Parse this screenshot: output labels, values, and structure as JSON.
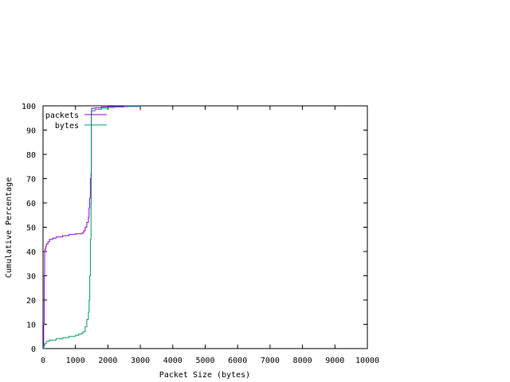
{
  "chart_data": {
    "type": "line",
    "title": "",
    "xlabel": "Packet Size (bytes)",
    "ylabel": "Cumulative Percentage",
    "xlim": [
      0,
      10000
    ],
    "ylim": [
      0,
      100
    ],
    "xticks": [
      0,
      1000,
      2000,
      3000,
      4000,
      5000,
      6000,
      7000,
      8000,
      9000,
      10000
    ],
    "yticks": [
      0,
      10,
      20,
      30,
      40,
      50,
      60,
      70,
      80,
      90,
      100
    ],
    "grid": false,
    "legend_position": "top-left",
    "series": [
      {
        "name": "packets",
        "color": "#9400d3",
        "x": [
          0,
          20,
          40,
          50,
          60,
          80,
          100,
          150,
          200,
          300,
          400,
          600,
          800,
          1000,
          1200,
          1250,
          1300,
          1350,
          1400,
          1420,
          1440,
          1460,
          1480,
          1490,
          1500,
          1600,
          1800,
          2000,
          2200,
          2500,
          3000
        ],
        "y": [
          0,
          10,
          30,
          40,
          41,
          42,
          43,
          44,
          45,
          45.5,
          46,
          46.5,
          47,
          47.3,
          47.6,
          48.5,
          50,
          52,
          54,
          58,
          62,
          70,
          72,
          98,
          99,
          99.2,
          99.5,
          99.7,
          99.8,
          99.9,
          100
        ]
      },
      {
        "name": "bytes",
        "color": "#009e73",
        "x": [
          0,
          20,
          50,
          100,
          200,
          400,
          600,
          800,
          1000,
          1100,
          1200,
          1250,
          1300,
          1350,
          1400,
          1420,
          1440,
          1460,
          1480,
          1490,
          1500,
          1600,
          1800,
          2000,
          2200,
          2500,
          3000
        ],
        "y": [
          0,
          1,
          2,
          3,
          3.5,
          4,
          4.5,
          5,
          5.5,
          6,
          6.5,
          7,
          9,
          12,
          15,
          20,
          30,
          45,
          60,
          97,
          98,
          98.5,
          99,
          99.3,
          99.5,
          99.7,
          100
        ]
      }
    ]
  }
}
